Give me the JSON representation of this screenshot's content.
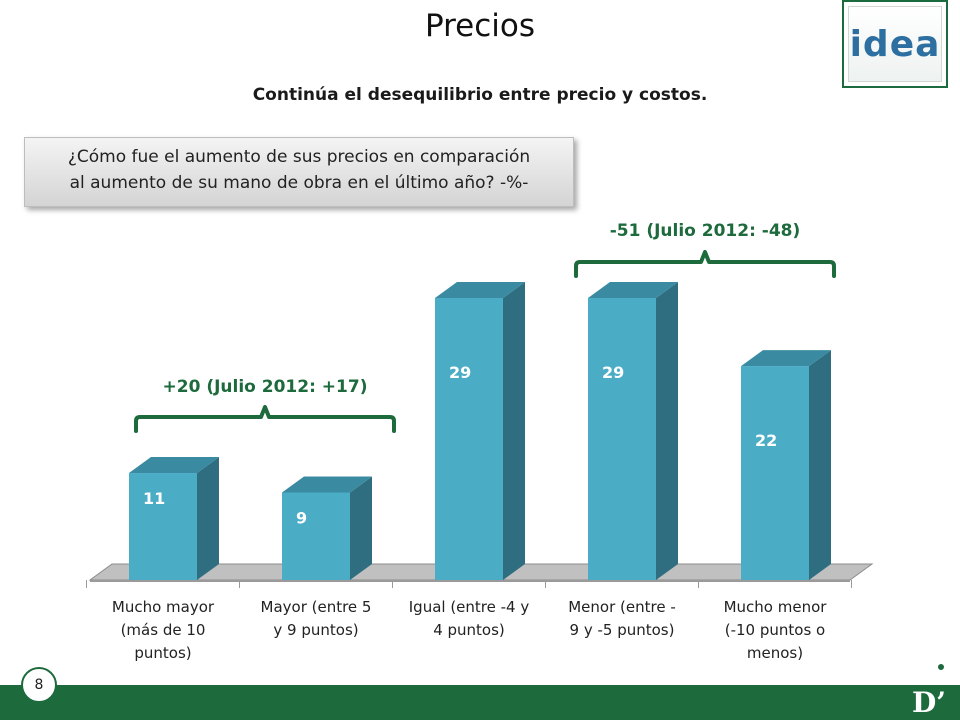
{
  "slide": {
    "title": "Precios",
    "subtitle": "Continúa el desequilibrio entre precio y costos.",
    "question_line1": "¿Cómo fue el aumento de sus precios en comparación",
    "question_line2": "al aumento de su mano de obra en el último año? -%-",
    "logo_text": "idea",
    "page_number": "8",
    "brand_mark": "D’"
  },
  "colors": {
    "bar_front": "#4bacc6",
    "bar_side": "#2f6e80",
    "bar_top": "#3a8ba1",
    "floor": "#c0c0c0",
    "bracket": "#1d6a3d",
    "accent_green": "#1d6a3d"
  },
  "chart_data": {
    "type": "bar",
    "categories": [
      [
        "Mucho mayor",
        "(más de 10",
        "puntos)"
      ],
      [
        "Mayor (entre 5",
        "y 9 puntos)"
      ],
      [
        "Igual (entre -4 y",
        "4 puntos)"
      ],
      [
        "Menor (entre -",
        "9 y -5 puntos)"
      ],
      [
        "Mucho menor",
        "(-10 puntos o",
        "menos)"
      ]
    ],
    "values": [
      11,
      9,
      29,
      29,
      22
    ],
    "ylim": [
      0,
      29
    ],
    "grid": false,
    "style": "3d-columns",
    "annotations": [
      {
        "text": "+20 (Julio 2012: +17)",
        "spans": [
          0,
          1
        ]
      },
      {
        "text": "-51 (Julio 2012: -48)",
        "spans": [
          3,
          4
        ]
      }
    ]
  }
}
